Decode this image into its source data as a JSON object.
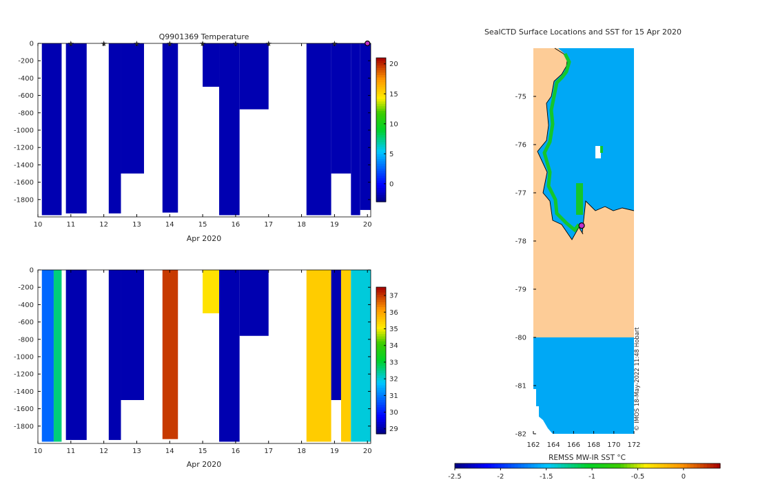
{
  "chart_data": [
    {
      "type": "heatmap",
      "title": "Q9901369  Temperature",
      "xlabel": "Apr 2020",
      "ylabel": "",
      "xlim": [
        10,
        20.1
      ],
      "ylim": [
        -2000,
        0
      ],
      "xticks": [
        10,
        11,
        12,
        13,
        14,
        15,
        16,
        17,
        18,
        19,
        20
      ],
      "yticks": [
        0,
        -200,
        -400,
        -600,
        -800,
        -1000,
        -1200,
        -1400,
        -1600,
        -1800
      ],
      "colorbar": {
        "ticks": [
          20,
          15,
          10,
          5,
          0
        ],
        "range": [
          -3,
          21
        ]
      },
      "profile_markers_x": [
        11,
        12,
        13,
        14,
        15,
        16,
        17,
        19
      ],
      "latest_marker_x": 20.0,
      "profiles": [
        {
          "x0": 10.12,
          "x1": 10.72,
          "depth": -1980,
          "value": -1.9
        },
        {
          "x0": 10.85,
          "x1": 11.48,
          "depth": -1960,
          "value": -1.9
        },
        {
          "x0": 12.15,
          "x1": 12.52,
          "depth": -1960,
          "value": -1.9
        },
        {
          "x0": 12.52,
          "x1": 13.22,
          "depth": -1500,
          "value": -1.9
        },
        {
          "x0": 13.78,
          "x1": 14.25,
          "depth": -1950,
          "value": -1.9
        },
        {
          "x0": 15.0,
          "x1": 15.5,
          "depth": -500,
          "value": -1.9
        },
        {
          "x0": 15.5,
          "x1": 16.12,
          "depth": -1980,
          "value": -1.9
        },
        {
          "x0": 16.12,
          "x1": 17.0,
          "depth": -760,
          "value": -1.9
        },
        {
          "x0": 18.15,
          "x1": 18.9,
          "depth": -1980,
          "value": -1.9
        },
        {
          "x0": 18.9,
          "x1": 19.5,
          "depth": -1500,
          "value": -1.9
        },
        {
          "x0": 19.5,
          "x1": 19.78,
          "depth": -1980,
          "value": -1.9
        },
        {
          "x0": 19.78,
          "x1": 20.1,
          "depth": -1920,
          "value": -1.9
        }
      ]
    },
    {
      "type": "heatmap",
      "title": "",
      "xlabel": "Apr 2020",
      "ylabel": "",
      "xlim": [
        10,
        20.1
      ],
      "ylim": [
        -2000,
        0
      ],
      "xticks": [
        10,
        11,
        12,
        13,
        14,
        15,
        16,
        17,
        18,
        19,
        20
      ],
      "yticks": [
        0,
        -200,
        -400,
        -600,
        -800,
        -1000,
        -1200,
        -1400,
        -1600,
        -1800
      ],
      "colorbar": {
        "ticks": [
          37,
          36,
          35,
          34,
          33,
          32,
          31,
          30,
          29
        ],
        "range": [
          28.7,
          37.5
        ]
      },
      "profiles": [
        {
          "x0": 10.12,
          "x1": 10.48,
          "depth": -1980,
          "value": 30.8
        },
        {
          "x0": 10.48,
          "x1": 10.72,
          "depth": -1980,
          "value": 32.6
        },
        {
          "x0": 10.85,
          "x1": 11.48,
          "depth": -1960,
          "value": 29.1
        },
        {
          "x0": 12.15,
          "x1": 12.52,
          "depth": -1960,
          "value": 29.1
        },
        {
          "x0": 12.52,
          "x1": 13.22,
          "depth": -1500,
          "value": 29.1
        },
        {
          "x0": 13.78,
          "x1": 14.25,
          "depth": -1950,
          "value": 37.0
        },
        {
          "x0": 15.0,
          "x1": 15.5,
          "depth": -500,
          "value": 35.2
        },
        {
          "x0": 15.5,
          "x1": 16.12,
          "depth": -1980,
          "value": 29.1
        },
        {
          "x0": 16.12,
          "x1": 17.0,
          "depth": -760,
          "value": 29.1
        },
        {
          "x0": 18.15,
          "x1": 18.9,
          "depth": -1980,
          "value": 35.5
        },
        {
          "x0": 18.9,
          "x1": 19.2,
          "depth": -1500,
          "value": 29.1
        },
        {
          "x0": 19.2,
          "x1": 19.5,
          "depth": -1980,
          "value": 35.5
        },
        {
          "x0": 19.5,
          "x1": 20.1,
          "depth": -1980,
          "value": 32.0
        }
      ]
    },
    {
      "type": "heatmap",
      "title": "SealCTD Surface Locations and SST for 15 Apr 2020",
      "xlabel": "REMSS MW-IR SST °C",
      "ylabel": "",
      "xlim": [
        162,
        172
      ],
      "ylim": [
        -82,
        -74
      ]
    }
  ],
  "map": {
    "xticks": [
      162,
      164,
      166,
      168,
      170,
      172
    ],
    "yticks": [
      -75,
      -76,
      -77,
      -78,
      -79,
      -80,
      -81,
      -82
    ],
    "land_color": "#fdcc97",
    "sea_color": "#00a8f5",
    "seal_position": [
      166.8,
      -77.68
    ],
    "watermark": "© IMOS 18-May-2022 11:48 Hobart"
  },
  "sst_colorbar": {
    "ticks": [
      -2.5,
      -2,
      -1.5,
      -1,
      -0.5,
      0
    ],
    "range": [
      -2.5,
      0.4
    ]
  }
}
